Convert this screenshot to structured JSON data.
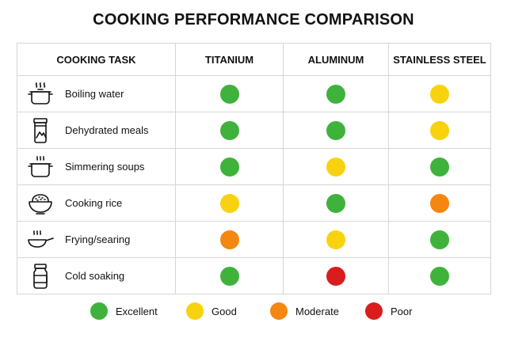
{
  "title": "COOKING PERFORMANCE COMPARISON",
  "headers": {
    "task": "COOKING TASK",
    "titanium": "TITANIUM",
    "aluminum": "ALUMINUM",
    "stainless": "STAINLESS STEEL"
  },
  "ratings_colors": {
    "excellent": "#3fb23c",
    "good": "#f9d20f",
    "moderate": "#f5860f",
    "poor": "#d91d1d"
  },
  "rows": [
    {
      "label": "Boiling water",
      "icon": "steaming-pot-icon",
      "titanium": "excellent",
      "aluminum": "excellent",
      "stainless": "good"
    },
    {
      "label": "Dehydrated meals",
      "icon": "food-pouch-icon",
      "titanium": "excellent",
      "aluminum": "excellent",
      "stainless": "good"
    },
    {
      "label": "Simmering soups",
      "icon": "soup-pot-icon",
      "titanium": "excellent",
      "aluminum": "good",
      "stainless": "excellent"
    },
    {
      "label": "Cooking rice",
      "icon": "rice-bowl-icon",
      "titanium": "good",
      "aluminum": "excellent",
      "stainless": "moderate"
    },
    {
      "label": "Frying/searing",
      "icon": "frying-pan-icon",
      "titanium": "moderate",
      "aluminum": "good",
      "stainless": "excellent"
    },
    {
      "label": "Cold soaking",
      "icon": "jar-icon",
      "titanium": "excellent",
      "aluminum": "poor",
      "stainless": "excellent"
    }
  ],
  "legend": {
    "excellent": "Excellent",
    "good": "Good",
    "moderate": "Moderate",
    "poor": "Poor"
  }
}
